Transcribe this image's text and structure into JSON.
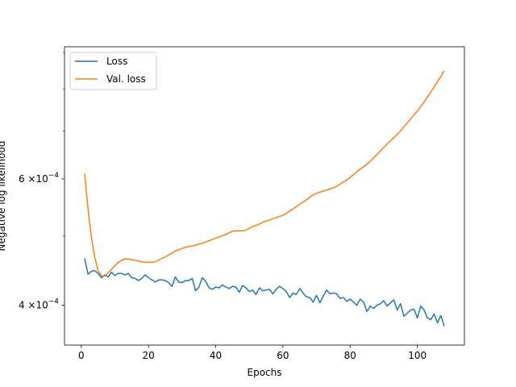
{
  "chart_data": {
    "type": "line",
    "title": "",
    "xlabel": "Epochs",
    "ylabel": "Negative log likelihood",
    "y_scale": "log",
    "xlim": [
      -5,
      114
    ],
    "ylim": [
      0.000352,
      0.000917
    ],
    "x_ticks": [
      0,
      20,
      40,
      60,
      80,
      100
    ],
    "y_major_ticks": [
      {
        "value": 0.0004,
        "mantissa": "4",
        "times": "×10",
        "exponent": "−4"
      },
      {
        "value": 0.0006,
        "mantissa": "6",
        "times": "×10",
        "exponent": "−4"
      }
    ],
    "y_minor_ticks": [
      0.0005,
      0.0007,
      0.0008,
      0.0009
    ],
    "grid": false,
    "legend_position": "top-left",
    "series": [
      {
        "name": "Loss",
        "color": "#1f77b4",
        "x": [
          1,
          2,
          3,
          4,
          5,
          6,
          7,
          8,
          9,
          10,
          11,
          12,
          13,
          14,
          15,
          16,
          17,
          18,
          19,
          20,
          21,
          22,
          23,
          24,
          25,
          26,
          27,
          28,
          29,
          30,
          31,
          32,
          33,
          34,
          35,
          36,
          37,
          38,
          39,
          40,
          41,
          42,
          43,
          44,
          45,
          46,
          47,
          48,
          49,
          50,
          51,
          52,
          53,
          54,
          55,
          56,
          57,
          58,
          59,
          60,
          61,
          62,
          63,
          64,
          65,
          66,
          67,
          68,
          69,
          70,
          71,
          72,
          73,
          74,
          75,
          76,
          77,
          78,
          79,
          80,
          81,
          82,
          83,
          84,
          85,
          86,
          87,
          88,
          89,
          90,
          91,
          92,
          93,
          94,
          95,
          96,
          97,
          98,
          99,
          100,
          101,
          102,
          103,
          104,
          105,
          106,
          107,
          108
        ],
        "values": [
          0.000465,
          0.000442,
          0.000446,
          0.000447,
          0.000443,
          0.000437,
          0.000441,
          0.000438,
          0.000445,
          0.00044,
          0.000443,
          0.000443,
          0.000441,
          0.000443,
          0.000437,
          0.000436,
          0.000433,
          0.000436,
          0.000441,
          0.000437,
          0.000434,
          0.000431,
          0.000434,
          0.000434,
          0.000433,
          0.00043,
          0.000425,
          0.000438,
          0.000431,
          0.00043,
          0.000433,
          0.000433,
          0.000436,
          0.000419,
          0.000424,
          0.000437,
          0.000432,
          0.000423,
          0.000421,
          0.000424,
          0.000423,
          0.000427,
          0.000424,
          0.000422,
          0.000425,
          0.000424,
          0.000417,
          0.000426,
          0.000423,
          0.000418,
          0.00042,
          0.000414,
          0.000423,
          0.000419,
          0.00042,
          0.000421,
          0.000415,
          0.000421,
          0.000425,
          0.000422,
          0.000418,
          0.00041,
          0.000416,
          0.000414,
          0.000422,
          0.000416,
          0.000411,
          0.00041,
          0.000404,
          0.000413,
          0.000403,
          0.000412,
          0.00042,
          0.000415,
          0.000416,
          0.000415,
          0.000409,
          0.00041,
          0.000405,
          0.000408,
          0.000404,
          0.0004,
          0.000408,
          0.000404,
          0.000392,
          0.000399,
          0.000396,
          0.0004,
          0.000402,
          0.000406,
          0.000399,
          0.000403,
          0.000407,
          0.000394,
          0.000402,
          0.000386,
          0.00039,
          0.000394,
          0.000395,
          0.000384,
          0.000399,
          0.000394,
          0.000384,
          0.000382,
          0.000389,
          0.000378,
          0.000387,
          0.000374
        ]
      },
      {
        "name": "Val. loss",
        "color": "#ff7f0e",
        "x": [
          1,
          2,
          3,
          4,
          5,
          6,
          7,
          8,
          9,
          10,
          11,
          12,
          13,
          14,
          15,
          16,
          17,
          18,
          19,
          20,
          21,
          22,
          23,
          24,
          25,
          26,
          27,
          28,
          29,
          30,
          31,
          32,
          33,
          34,
          35,
          36,
          37,
          38,
          39,
          40,
          41,
          42,
          43,
          44,
          45,
          46,
          47,
          48,
          49,
          50,
          51,
          52,
          53,
          54,
          55,
          56,
          57,
          58,
          59,
          60,
          61,
          62,
          63,
          64,
          65,
          66,
          67,
          68,
          69,
          70,
          71,
          72,
          73,
          74,
          75,
          76,
          77,
          78,
          79,
          80,
          81,
          82,
          83,
          84,
          85,
          86,
          87,
          88,
          89,
          90,
          91,
          92,
          93,
          94,
          95,
          96,
          97,
          98,
          99,
          100,
          101,
          102,
          103,
          104,
          105,
          106,
          107,
          108
        ],
        "values": [
          0.00061,
          0.000545,
          0.000497,
          0.000467,
          0.000447,
          0.00044,
          0.000439,
          0.000444,
          0.000449,
          0.000454,
          0.000459,
          0.000462,
          0.000464,
          0.000464,
          0.000463,
          0.000462,
          0.000461,
          0.00046,
          0.000459,
          0.000459,
          0.000459,
          0.00046,
          0.000462,
          0.000465,
          0.000467,
          0.00047,
          0.000473,
          0.000476,
          0.000478,
          0.00048,
          0.000482,
          0.000483,
          0.000484,
          0.000485,
          0.000487,
          0.000488,
          0.00049,
          0.000492,
          0.000494,
          0.000496,
          0.000498,
          0.0005,
          0.000502,
          0.000505,
          0.000507,
          0.000508,
          0.000508,
          0.000508,
          0.000509,
          0.000512,
          0.000515,
          0.000517,
          0.000519,
          0.000522,
          0.000524,
          0.000526,
          0.000528,
          0.00053,
          0.000532,
          0.000534,
          0.000537,
          0.000541,
          0.000545,
          0.000549,
          0.000553,
          0.000557,
          0.000561,
          0.000566,
          0.00057,
          0.000573,
          0.000575,
          0.000577,
          0.000579,
          0.000581,
          0.000583,
          0.000586,
          0.00059,
          0.000594,
          0.000598,
          0.000603,
          0.000608,
          0.000614,
          0.000619,
          0.000624,
          0.000629,
          0.000635,
          0.000642,
          0.000649,
          0.000656,
          0.000664,
          0.000671,
          0.000678,
          0.000685,
          0.000692,
          0.0007,
          0.000709,
          0.000718,
          0.000727,
          0.000737,
          0.000746,
          0.000757,
          0.000768,
          0.00078,
          0.000793,
          0.000806,
          0.00082,
          0.000834,
          0.000849
        ]
      }
    ]
  }
}
